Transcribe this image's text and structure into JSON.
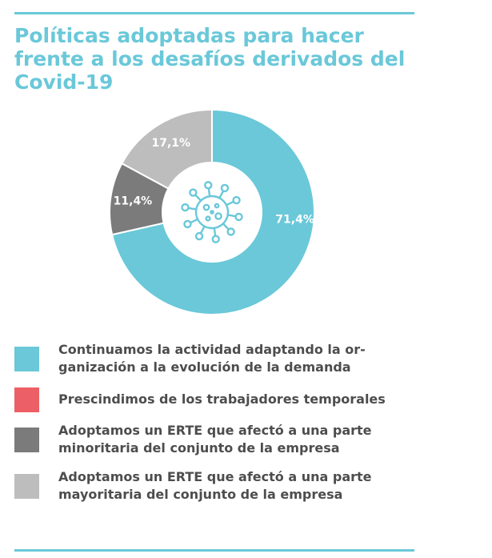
{
  "title": "Políticas adoptadas para hacer frente a los desafíos derivados del Covid-19",
  "center_icon": "virus-icon",
  "colors": {
    "accent": "#6ac8d9",
    "text": "#4d4d4d"
  },
  "chart_data": {
    "type": "pie",
    "donut": true,
    "categories": [
      "Continuamos la actividad adaptando la or-ganización a la evolución de la demanda",
      "Prescindimos de los trabajadores temporales",
      "Adoptamos un ERTE que afectó a una parte minoritaria del conjunto de la empresa",
      "Adoptamos un ERTE que afectó a una parte mayoritaria del conjunto de la empresa"
    ],
    "values": [
      71.4,
      0,
      11.4,
      17.1
    ],
    "data_labels": [
      "71,4%",
      "",
      "11,4%",
      "17,1%"
    ],
    "colors": [
      "#6ac8d9",
      "#ed5f66",
      "#7b7b7b",
      "#bdbdbd"
    ],
    "legend_position": "bottom"
  },
  "legend": [
    {
      "line1": "Continuamos la actividad adaptando la or-",
      "line2": "ganización a la evolución de la demanda"
    },
    {
      "line1": "Prescindimos de los trabajadores temporales",
      "line2": ""
    },
    {
      "line1": "Adoptamos un ERTE que afectó a una parte",
      "line2": "minoritaria del conjunto de la empresa"
    },
    {
      "line1": "Adoptamos un ERTE que afectó a una parte",
      "line2": "mayoritaria del conjunto de la empresa"
    }
  ]
}
